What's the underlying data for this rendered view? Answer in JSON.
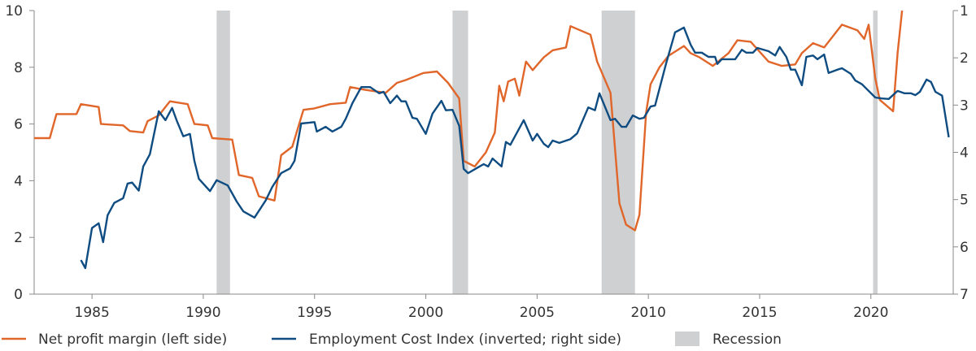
{
  "chart_data": {
    "type": "line",
    "title": "",
    "xlabel": "",
    "ylabel": "",
    "xlim": [
      1982.4,
      2023.7
    ],
    "ylim_left": [
      0,
      10
    ],
    "ylim_right": [
      1,
      7
    ],
    "right_axis_inverted": true,
    "grid": false,
    "legend_position": "bottom",
    "x_ticks": [
      1985,
      1990,
      1995,
      2000,
      2005,
      2010,
      2015,
      2020
    ],
    "y_ticks_left": [
      0,
      2,
      4,
      6,
      8,
      10
    ],
    "y_ticks_right": [
      1,
      2,
      3,
      4,
      5,
      6,
      7
    ],
    "colors": {
      "margin": "#e0662a",
      "eci": "#0f4c81",
      "recession": "#cfd0d2",
      "axis": "#8a8a8a"
    },
    "recessions": [
      [
        1990.6,
        1991.2
      ],
      [
        2001.2,
        2001.9
      ],
      [
        2007.9,
        2009.4
      ],
      [
        2020.1,
        2020.3
      ]
    ],
    "series": [
      {
        "name": "Net profit margin (left side)",
        "axis": "left",
        "points": [
          [
            1982.4,
            5.5
          ],
          [
            1983.1,
            5.5
          ],
          [
            1983.4,
            6.35
          ],
          [
            1984.3,
            6.35
          ],
          [
            1984.5,
            6.7
          ],
          [
            1985.3,
            6.6
          ],
          [
            1985.4,
            6.0
          ],
          [
            1986.4,
            5.95
          ],
          [
            1986.7,
            5.75
          ],
          [
            1987.3,
            5.7
          ],
          [
            1987.5,
            6.1
          ],
          [
            1988.0,
            6.3
          ],
          [
            1988.5,
            6.8
          ],
          [
            1989.3,
            6.7
          ],
          [
            1989.6,
            6.0
          ],
          [
            1990.2,
            5.95
          ],
          [
            1990.4,
            5.5
          ],
          [
            1991.3,
            5.45
          ],
          [
            1991.6,
            4.2
          ],
          [
            1992.2,
            4.1
          ],
          [
            1992.5,
            3.45
          ],
          [
            1993.2,
            3.3
          ],
          [
            1993.5,
            4.9
          ],
          [
            1994.0,
            5.2
          ],
          [
            1994.5,
            6.5
          ],
          [
            1995.0,
            6.55
          ],
          [
            1995.7,
            6.7
          ],
          [
            1996.4,
            6.75
          ],
          [
            1996.6,
            7.3
          ],
          [
            1997.3,
            7.2
          ],
          [
            1998.2,
            7.1
          ],
          [
            1998.7,
            7.45
          ],
          [
            1999.1,
            7.55
          ],
          [
            1999.9,
            7.8
          ],
          [
            2000.5,
            7.85
          ],
          [
            2001.0,
            7.45
          ],
          [
            2001.5,
            6.9
          ],
          [
            2001.7,
            4.7
          ],
          [
            2002.2,
            4.5
          ],
          [
            2002.7,
            5.0
          ],
          [
            2003.1,
            5.7
          ],
          [
            2003.3,
            7.35
          ],
          [
            2003.5,
            6.8
          ],
          [
            2003.7,
            7.5
          ],
          [
            2004.0,
            7.6
          ],
          [
            2004.2,
            7.0
          ],
          [
            2004.5,
            8.2
          ],
          [
            2004.8,
            7.9
          ],
          [
            2005.3,
            8.35
          ],
          [
            2005.7,
            8.6
          ],
          [
            2006.3,
            8.7
          ],
          [
            2006.5,
            9.45
          ],
          [
            2007.4,
            9.15
          ],
          [
            2007.7,
            8.2
          ],
          [
            2008.3,
            7.1
          ],
          [
            2008.7,
            3.2
          ],
          [
            2009.0,
            2.45
          ],
          [
            2009.4,
            2.25
          ],
          [
            2009.6,
            2.8
          ],
          [
            2009.9,
            6.4
          ],
          [
            2010.1,
            7.4
          ],
          [
            2010.5,
            8.0
          ],
          [
            2010.9,
            8.4
          ],
          [
            2011.6,
            8.75
          ],
          [
            2011.9,
            8.5
          ],
          [
            2012.3,
            8.35
          ],
          [
            2012.9,
            8.05
          ],
          [
            2013.6,
            8.5
          ],
          [
            2014.0,
            8.95
          ],
          [
            2014.6,
            8.9
          ],
          [
            2015.4,
            8.2
          ],
          [
            2016.0,
            8.05
          ],
          [
            2016.6,
            8.1
          ],
          [
            2016.9,
            8.5
          ],
          [
            2017.4,
            8.85
          ],
          [
            2017.9,
            8.7
          ],
          [
            2018.7,
            9.5
          ],
          [
            2019.4,
            9.3
          ],
          [
            2019.7,
            9.0
          ],
          [
            2019.9,
            9.5
          ],
          [
            2020.2,
            7.6
          ],
          [
            2020.4,
            6.85
          ],
          [
            2021.0,
            6.45
          ],
          [
            2021.2,
            8.5
          ],
          [
            2021.4,
            10.0
          ]
        ]
      },
      {
        "name": "Employment Cost Index (inverted; right side)",
        "axis": "right",
        "points": [
          [
            1984.5,
            6.28
          ],
          [
            1984.7,
            6.45
          ],
          [
            1985.0,
            5.6
          ],
          [
            1985.3,
            5.5
          ],
          [
            1985.5,
            5.9
          ],
          [
            1985.7,
            5.33
          ],
          [
            1986.0,
            5.07
          ],
          [
            1986.4,
            4.97
          ],
          [
            1986.6,
            4.66
          ],
          [
            1986.8,
            4.64
          ],
          [
            1987.1,
            4.81
          ],
          [
            1987.3,
            4.3
          ],
          [
            1987.6,
            4.04
          ],
          [
            1988.0,
            3.13
          ],
          [
            1988.3,
            3.32
          ],
          [
            1988.6,
            3.06
          ],
          [
            1988.8,
            3.32
          ],
          [
            1989.1,
            3.66
          ],
          [
            1989.4,
            3.61
          ],
          [
            1989.6,
            4.18
          ],
          [
            1989.8,
            4.56
          ],
          [
            1990.3,
            4.82
          ],
          [
            1990.6,
            4.59
          ],
          [
            1991.1,
            4.7
          ],
          [
            1991.5,
            5.04
          ],
          [
            1991.8,
            5.25
          ],
          [
            1992.3,
            5.38
          ],
          [
            1992.8,
            5.02
          ],
          [
            1993.1,
            4.73
          ],
          [
            1993.5,
            4.44
          ],
          [
            1993.9,
            4.34
          ],
          [
            1994.1,
            4.18
          ],
          [
            1994.4,
            3.39
          ],
          [
            1995.0,
            3.36
          ],
          [
            1995.1,
            3.56
          ],
          [
            1995.5,
            3.46
          ],
          [
            1995.8,
            3.56
          ],
          [
            1996.2,
            3.46
          ],
          [
            1996.4,
            3.29
          ],
          [
            1996.7,
            2.96
          ],
          [
            1997.1,
            2.62
          ],
          [
            1997.5,
            2.62
          ],
          [
            1997.9,
            2.75
          ],
          [
            1998.1,
            2.72
          ],
          [
            1998.4,
            2.96
          ],
          [
            1998.7,
            2.8
          ],
          [
            1998.9,
            2.92
          ],
          [
            1999.1,
            2.92
          ],
          [
            1999.4,
            3.27
          ],
          [
            1999.6,
            3.29
          ],
          [
            2000.0,
            3.61
          ],
          [
            2000.3,
            3.18
          ],
          [
            2000.7,
            2.91
          ],
          [
            2000.9,
            3.11
          ],
          [
            2001.2,
            3.1
          ],
          [
            2001.5,
            3.44
          ],
          [
            2001.7,
            4.35
          ],
          [
            2001.9,
            4.44
          ],
          [
            2002.3,
            4.33
          ],
          [
            2002.6,
            4.25
          ],
          [
            2002.8,
            4.3
          ],
          [
            2003.0,
            4.13
          ],
          [
            2003.4,
            4.3
          ],
          [
            2003.6,
            3.78
          ],
          [
            2003.8,
            3.84
          ],
          [
            2004.4,
            3.32
          ],
          [
            2004.8,
            3.75
          ],
          [
            2005.0,
            3.61
          ],
          [
            2005.3,
            3.82
          ],
          [
            2005.5,
            3.89
          ],
          [
            2005.7,
            3.75
          ],
          [
            2006.0,
            3.8
          ],
          [
            2006.5,
            3.72
          ],
          [
            2006.8,
            3.6
          ],
          [
            2007.3,
            3.05
          ],
          [
            2007.6,
            3.11
          ],
          [
            2007.8,
            2.75
          ],
          [
            2008.3,
            3.32
          ],
          [
            2008.5,
            3.29
          ],
          [
            2008.8,
            3.46
          ],
          [
            2009.0,
            3.46
          ],
          [
            2009.3,
            3.22
          ],
          [
            2009.6,
            3.29
          ],
          [
            2009.8,
            3.27
          ],
          [
            2010.1,
            3.03
          ],
          [
            2010.3,
            3.01
          ],
          [
            2010.8,
            2.12
          ],
          [
            2011.2,
            1.46
          ],
          [
            2011.6,
            1.36
          ],
          [
            2011.9,
            1.72
          ],
          [
            2012.1,
            1.89
          ],
          [
            2012.4,
            1.89
          ],
          [
            2012.7,
            1.98
          ],
          [
            2013.0,
            1.98
          ],
          [
            2013.1,
            2.13
          ],
          [
            2013.3,
            2.03
          ],
          [
            2013.9,
            2.03
          ],
          [
            2014.2,
            1.83
          ],
          [
            2014.4,
            1.89
          ],
          [
            2014.7,
            1.89
          ],
          [
            2014.9,
            1.79
          ],
          [
            2015.4,
            1.86
          ],
          [
            2015.7,
            1.95
          ],
          [
            2015.9,
            1.77
          ],
          [
            2016.2,
            1.98
          ],
          [
            2016.4,
            2.25
          ],
          [
            2016.6,
            2.25
          ],
          [
            2016.9,
            2.58
          ],
          [
            2017.1,
            1.98
          ],
          [
            2017.4,
            1.95
          ],
          [
            2017.6,
            2.03
          ],
          [
            2017.9,
            1.93
          ],
          [
            2018.1,
            2.32
          ],
          [
            2018.5,
            2.25
          ],
          [
            2018.7,
            2.22
          ],
          [
            2019.1,
            2.34
          ],
          [
            2019.3,
            2.48
          ],
          [
            2019.6,
            2.56
          ],
          [
            2020.2,
            2.84
          ],
          [
            2020.5,
            2.86
          ],
          [
            2020.8,
            2.87
          ],
          [
            2021.2,
            2.7
          ],
          [
            2021.5,
            2.75
          ],
          [
            2021.8,
            2.75
          ],
          [
            2022.0,
            2.79
          ],
          [
            2022.2,
            2.72
          ],
          [
            2022.5,
            2.46
          ],
          [
            2022.7,
            2.51
          ],
          [
            2022.9,
            2.72
          ],
          [
            2023.2,
            2.8
          ],
          [
            2023.5,
            3.68
          ]
        ]
      }
    ],
    "legend": [
      {
        "label": "Net profit margin (left side)",
        "kind": "line",
        "color_key": "margin"
      },
      {
        "label": "Employment Cost Index (inverted; right side)",
        "kind": "line",
        "color_key": "eci"
      },
      {
        "label": "Recession",
        "kind": "box",
        "color_key": "recession"
      }
    ]
  }
}
